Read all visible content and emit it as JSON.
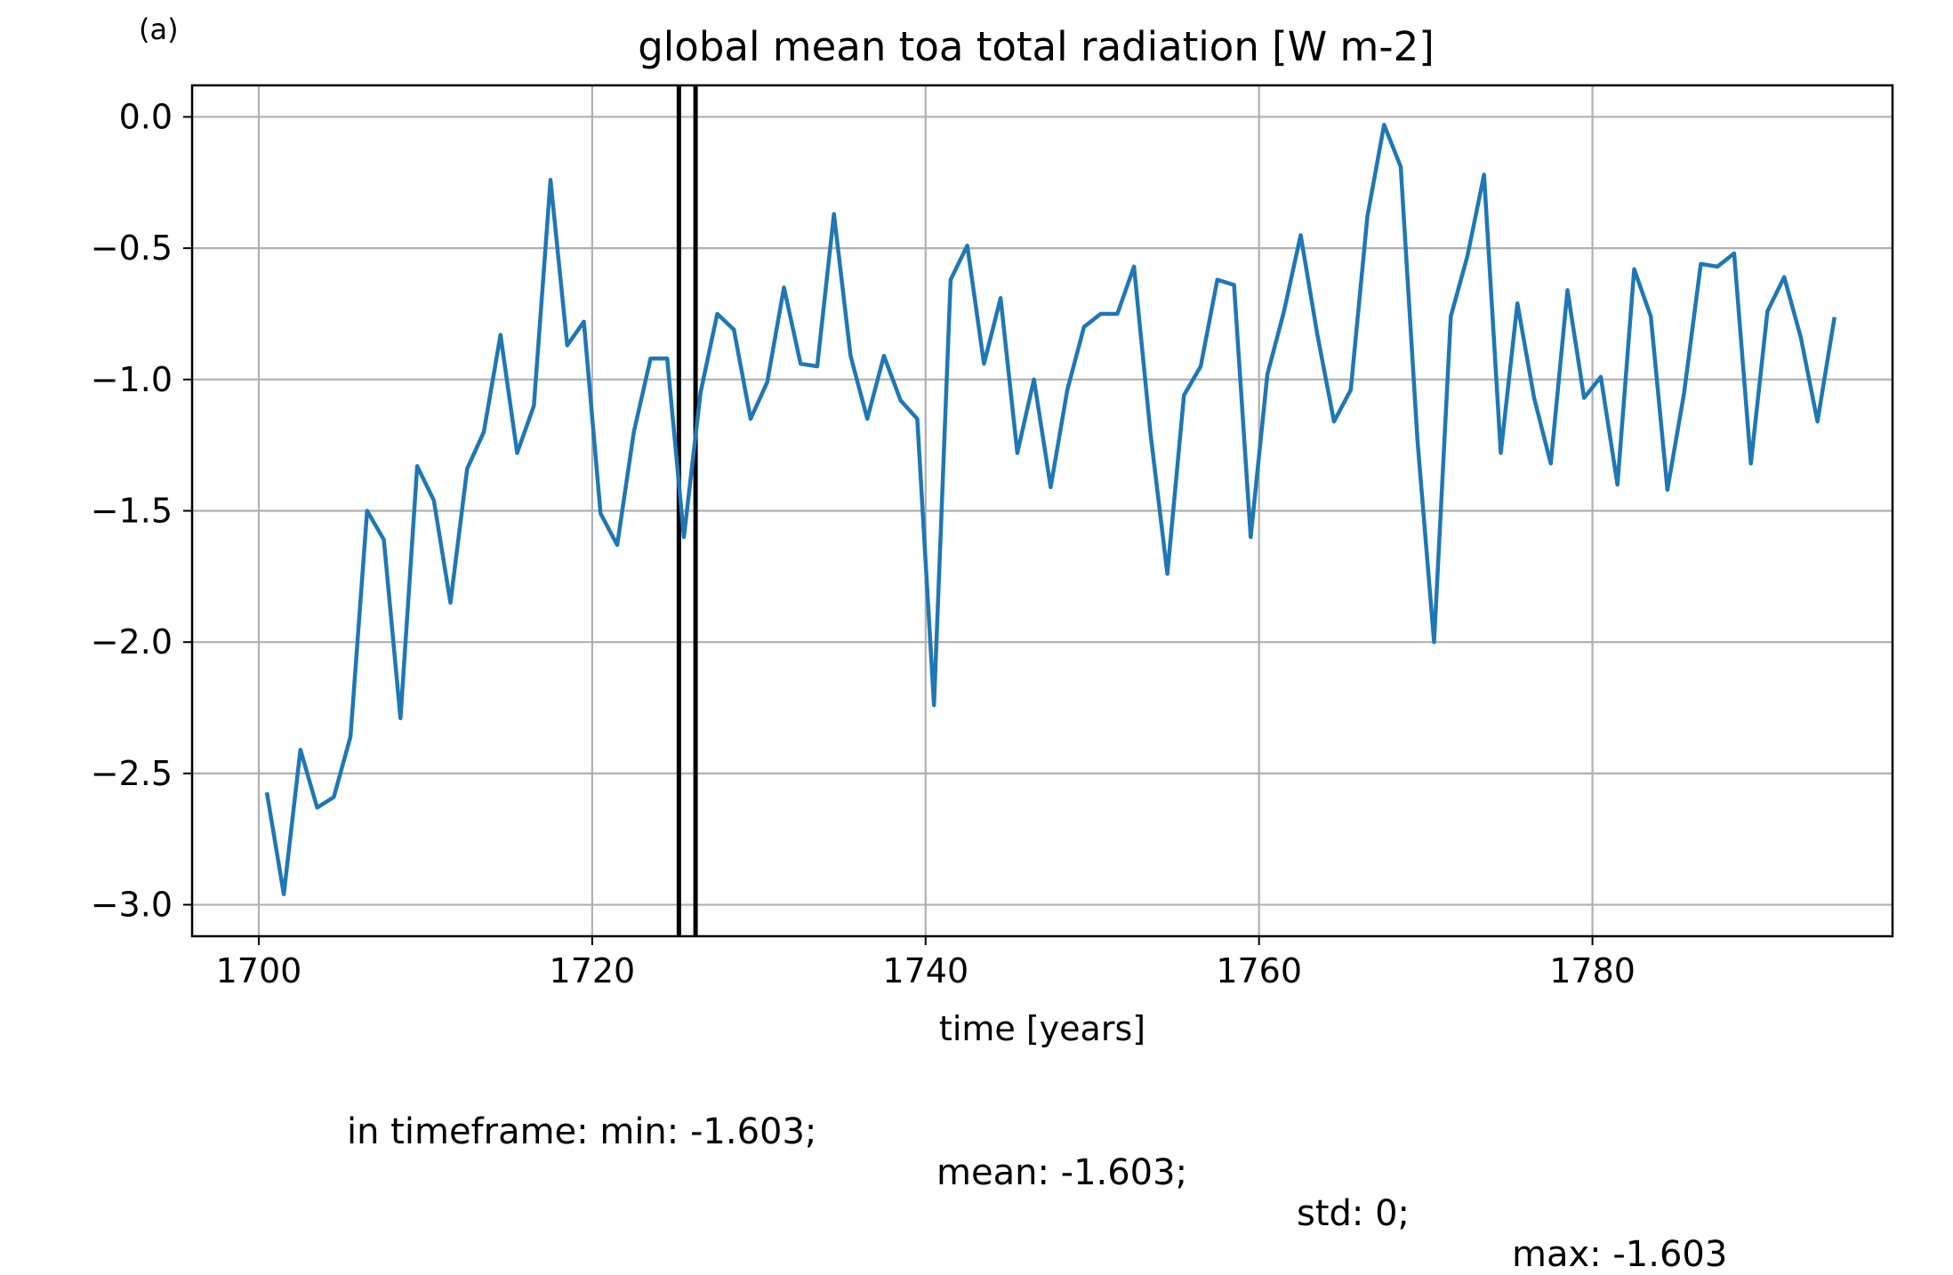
{
  "panel_label": "(a)",
  "stats": {
    "min_text": "in timeframe: min: -1.603;",
    "mean_text": "mean: -1.603;",
    "std_text": "std: 0;",
    "max_text": "max: -1.603"
  },
  "colors": {
    "series": "#1f77b4",
    "grid": "#b0b0b0",
    "marker_lines": "#000000"
  },
  "chart_data": {
    "type": "line",
    "title": "global mean toa total radiation [W m-2]",
    "xlabel": "time [years]",
    "ylabel": "",
    "xlim": [
      1696,
      1798
    ],
    "ylim": [
      -3.12,
      0.12
    ],
    "xticks": [
      1700,
      1720,
      1740,
      1760,
      1780
    ],
    "xtick_labels": [
      "1700",
      "1720",
      "1740",
      "1760",
      "1780"
    ],
    "yticks": [
      0.0,
      -0.5,
      -1.0,
      -1.5,
      -2.0,
      -2.5,
      -3.0
    ],
    "ytick_labels": [
      "0.0",
      "−0.5",
      "−1.0",
      "−1.5",
      "−2.0",
      "−2.5",
      "−3.0"
    ],
    "grid": true,
    "vertical_lines_x": [
      1725.2,
      1726.2
    ],
    "series": [
      {
        "x": [
          1700.5,
          1701.5,
          1702.5,
          1703.5,
          1704.5,
          1705.5,
          1706.5,
          1707.5,
          1708.5,
          1709.5,
          1710.5,
          1711.5,
          1712.5,
          1713.5,
          1714.5,
          1715.5,
          1716.5,
          1717.5,
          1718.5,
          1719.5,
          1720.5,
          1721.5,
          1722.5,
          1723.5,
          1724.5,
          1725.5,
          1726.5,
          1727.5,
          1728.5,
          1729.5,
          1730.5,
          1731.5,
          1732.5,
          1733.5,
          1734.5,
          1735.5,
          1736.5,
          1737.5,
          1738.5,
          1739.5,
          1740.5,
          1741.5,
          1742.5,
          1743.5,
          1744.5,
          1745.5,
          1746.5,
          1747.5,
          1748.5,
          1749.5,
          1750.5,
          1751.5,
          1752.5,
          1753.5,
          1754.5,
          1755.5,
          1756.5,
          1757.5,
          1758.5,
          1759.5,
          1760.5,
          1761.5,
          1762.5,
          1763.5,
          1764.5,
          1765.5,
          1766.5,
          1767.5,
          1768.5,
          1769.5,
          1770.5,
          1771.5,
          1772.5,
          1773.5,
          1774.5,
          1775.5,
          1776.5,
          1777.5,
          1778.5,
          1779.5,
          1780.5,
          1781.5,
          1782.5,
          1783.5,
          1784.5,
          1785.5,
          1786.5,
          1787.5,
          1788.5,
          1789.5,
          1790.5,
          1791.5,
          1792.5,
          1793.5,
          1794.5
        ],
        "y": [
          -2.58,
          -2.96,
          -2.41,
          -2.63,
          -2.59,
          -2.36,
          -1.5,
          -1.61,
          -2.29,
          -1.33,
          -1.46,
          -1.85,
          -1.34,
          -1.2,
          -0.83,
          -1.28,
          -1.1,
          -0.24,
          -0.87,
          -0.78,
          -1.51,
          -1.63,
          -1.2,
          -0.92,
          -0.92,
          -1.6,
          -1.05,
          -0.75,
          -0.81,
          -1.15,
          -1.01,
          -0.65,
          -0.94,
          -0.95,
          -0.37,
          -0.91,
          -1.15,
          -0.91,
          -1.08,
          -1.15,
          -2.24,
          -0.62,
          -0.49,
          -0.94,
          -0.69,
          -1.28,
          -1.0,
          -1.41,
          -1.04,
          -0.8,
          -0.75,
          -0.75,
          -0.57,
          -1.21,
          -1.74,
          -1.06,
          -0.95,
          -0.62,
          -0.64,
          -1.6,
          -0.98,
          -0.74,
          -0.45,
          -0.83,
          -1.16,
          -1.04,
          -0.38,
          -0.03,
          -0.19,
          -1.23,
          -2.0,
          -0.76,
          -0.53,
          -0.22,
          -1.28,
          -0.71,
          -1.07,
          -1.32,
          -0.66,
          -1.07,
          -0.99,
          -1.4,
          -0.58,
          -0.76,
          -1.42,
          -1.05,
          -0.56,
          -0.57,
          -0.52,
          -1.32,
          -0.74,
          -0.61,
          -0.84,
          -1.16,
          -0.77
        ]
      }
    ]
  }
}
